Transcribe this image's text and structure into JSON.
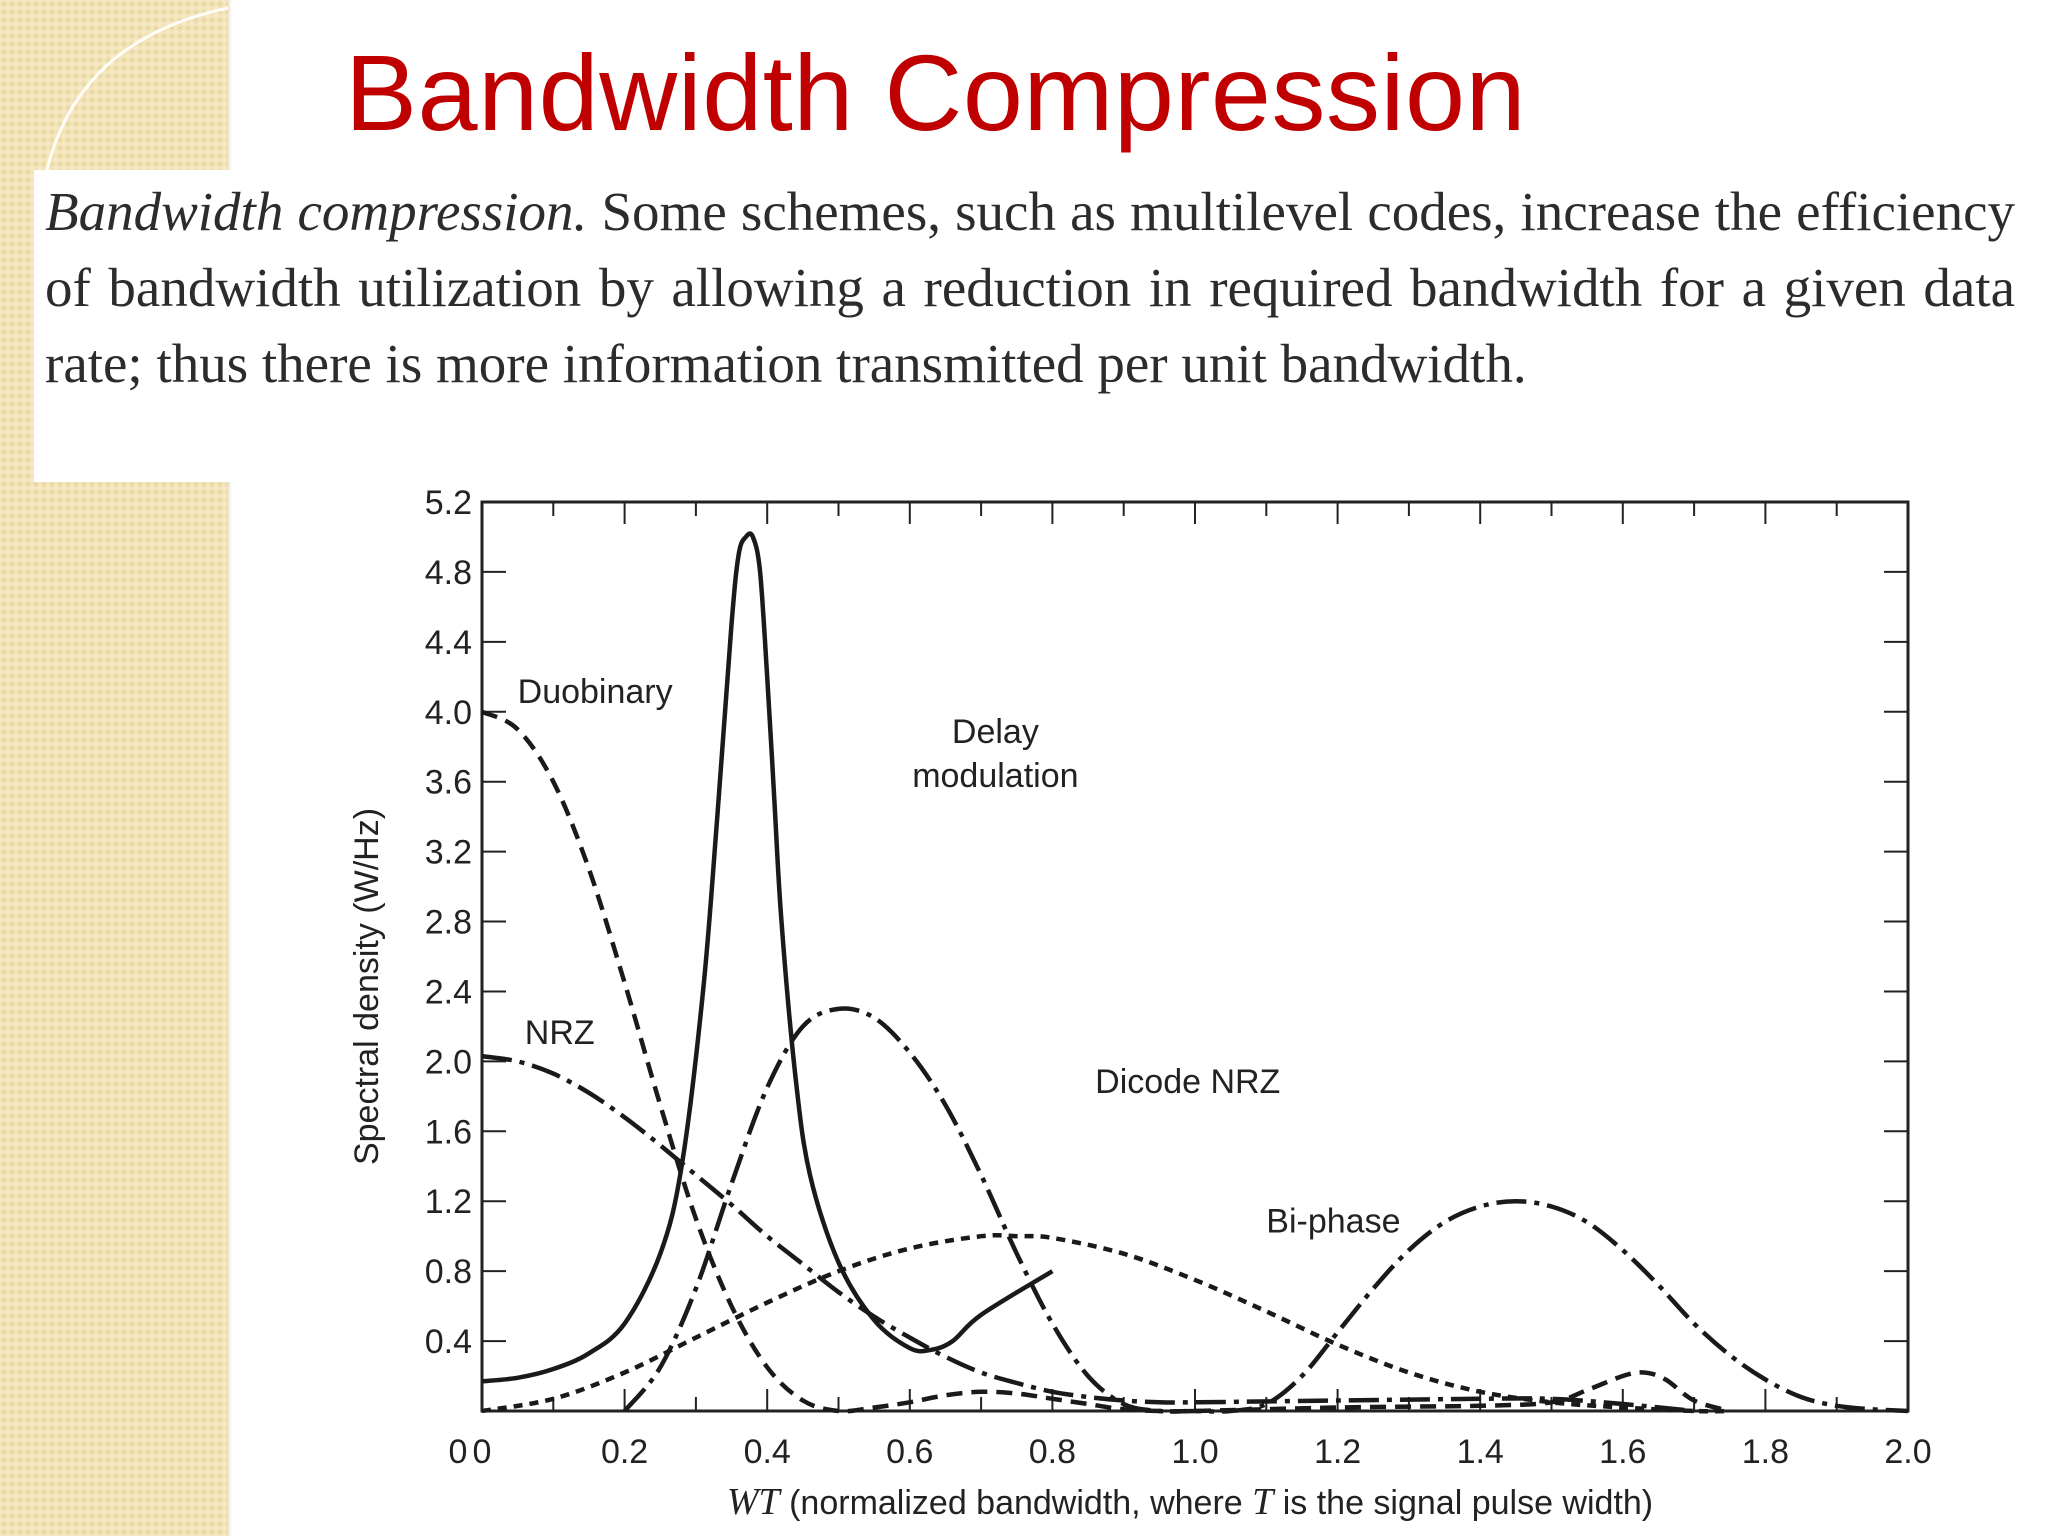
{
  "slide": {
    "title": "Bandwidth Compression",
    "paragraph_lead": "Bandwidth compression.",
    "paragraph_rest": "Some schemes, such as multilevel codes, increase the efficiency of bandwidth utilization by allowing a reduction in required bandwidth for a given data rate; thus there is more information transmitted per unit bandwidth.",
    "title_color": "#c00000"
  },
  "chart_data": {
    "type": "line",
    "title": "",
    "xlabel_parts": [
      "WT",
      " (normalized bandwidth, where ",
      "T",
      " is the signal pulse width)"
    ],
    "ylabel": "Spectral density (W/Hz)",
    "xlim": [
      0,
      2.0
    ],
    "ylim": [
      0,
      5.2
    ],
    "x_ticks": [
      0,
      0.2,
      0.4,
      0.6,
      0.8,
      1.0,
      1.2,
      1.4,
      1.6,
      1.8,
      2.0
    ],
    "x_tick_labels": [
      "0",
      "0.2",
      "0.4",
      "0.6",
      "0.8",
      "1.0",
      "1.2",
      "1.4",
      "1.6",
      "1.8",
      "2.0"
    ],
    "y_ticks": [
      0.4,
      0.8,
      1.2,
      1.6,
      2.0,
      2.4,
      2.8,
      3.2,
      3.6,
      4.0,
      4.4,
      4.8,
      5.2
    ],
    "y_tick_labels": [
      "0.4",
      "0.8",
      "1.2",
      "1.6",
      "2.0",
      "2.4",
      "2.8",
      "3.2",
      "3.6",
      "4.0",
      "4.4",
      "4.8",
      "5.2"
    ],
    "grid": false,
    "series": [
      {
        "name": "NRZ",
        "style": "long-dash-dot",
        "x": [
          0,
          0.05,
          0.1,
          0.15,
          0.2,
          0.25,
          0.3,
          0.35,
          0.4,
          0.45,
          0.5,
          0.55,
          0.6,
          0.65,
          0.7,
          0.75,
          0.8,
          0.85,
          0.9,
          0.95,
          1.0,
          1.2,
          1.4,
          1.5,
          1.6,
          1.7
        ],
        "y": [
          2.03,
          2.0,
          1.93,
          1.82,
          1.68,
          1.52,
          1.35,
          1.18,
          1.0,
          0.84,
          0.68,
          0.54,
          0.42,
          0.31,
          0.22,
          0.16,
          0.11,
          0.08,
          0.06,
          0.05,
          0.05,
          0.06,
          0.07,
          0.07,
          0.04,
          0.0
        ]
      },
      {
        "name": "Duobinary",
        "style": "dash",
        "x": [
          0,
          0.05,
          0.1,
          0.15,
          0.2,
          0.25,
          0.3,
          0.35,
          0.4,
          0.45,
          0.5,
          0.55,
          0.6,
          0.65,
          0.7,
          0.75,
          0.8,
          0.85,
          0.9,
          0.95,
          1.0,
          1.2,
          1.4,
          1.5,
          1.55,
          1.6,
          1.63,
          1.66,
          1.7,
          1.75
        ],
        "y": [
          4.0,
          3.9,
          3.6,
          3.1,
          2.45,
          1.75,
          1.1,
          0.6,
          0.25,
          0.06,
          0.0,
          0.02,
          0.05,
          0.09,
          0.11,
          0.1,
          0.07,
          0.04,
          0.01,
          0.0,
          0.0,
          0.02,
          0.03,
          0.05,
          0.12,
          0.2,
          0.22,
          0.18,
          0.06,
          0.0
        ]
      },
      {
        "name": "Delay modulation",
        "style": "solid",
        "x": [
          0,
          0.05,
          0.1,
          0.15,
          0.2,
          0.25,
          0.28,
          0.31,
          0.33,
          0.35,
          0.36,
          0.37,
          0.38,
          0.39,
          0.4,
          0.41,
          0.42,
          0.44,
          0.46,
          0.5,
          0.55,
          0.6,
          0.63,
          0.66,
          0.7,
          0.8
        ],
        "y": [
          0.17,
          0.19,
          0.24,
          0.33,
          0.5,
          0.9,
          1.4,
          2.4,
          3.4,
          4.5,
          4.9,
          5.0,
          5.0,
          4.8,
          4.2,
          3.5,
          2.8,
          1.9,
          1.35,
          0.85,
          0.52,
          0.36,
          0.35,
          0.4,
          0.55,
          0.8
        ]
      },
      {
        "name": "Dicode NRZ",
        "style": "long-dash-dot",
        "x": [
          0.2,
          0.25,
          0.3,
          0.35,
          0.4,
          0.45,
          0.5,
          0.55,
          0.6,
          0.65,
          0.7,
          0.75,
          0.8,
          0.85,
          0.9,
          0.95,
          1.0,
          1.05,
          1.1,
          1.15,
          1.2,
          1.25,
          1.3,
          1.35,
          1.4,
          1.45,
          1.5,
          1.55,
          1.6,
          1.65,
          1.7,
          1.75,
          1.8,
          1.85,
          1.9,
          1.95,
          2.0
        ],
        "y": [
          0.0,
          0.25,
          0.7,
          1.3,
          1.85,
          2.2,
          2.3,
          2.25,
          2.05,
          1.75,
          1.35,
          0.9,
          0.5,
          0.2,
          0.04,
          0.0,
          0.0,
          0.0,
          0.04,
          0.2,
          0.45,
          0.7,
          0.92,
          1.08,
          1.17,
          1.2,
          1.17,
          1.08,
          0.92,
          0.72,
          0.5,
          0.32,
          0.18,
          0.08,
          0.03,
          0.01,
          0.0
        ]
      },
      {
        "name": "Bi-phase",
        "style": "short-dash",
        "x": [
          0,
          0.1,
          0.2,
          0.3,
          0.4,
          0.5,
          0.6,
          0.7,
          0.75,
          0.8,
          0.9,
          1.0,
          1.1,
          1.2,
          1.3,
          1.4,
          1.5,
          1.6,
          1.7,
          1.75
        ],
        "y": [
          0.0,
          0.07,
          0.22,
          0.42,
          0.62,
          0.8,
          0.93,
          1.0,
          1.0,
          0.99,
          0.9,
          0.75,
          0.57,
          0.38,
          0.22,
          0.11,
          0.05,
          0.02,
          0.0,
          0.0
        ]
      }
    ],
    "annotations": [
      {
        "text": "Duobinary",
        "x": 0.05,
        "y": 4.05
      },
      {
        "text": "Delay",
        "x": 0.605,
        "y": 3.82
      },
      {
        "text": "modulation",
        "x": 0.605,
        "y": 3.57
      },
      {
        "text": "NRZ",
        "x": 0.06,
        "y": 2.1
      },
      {
        "text": "Dicode NRZ",
        "x": 0.86,
        "y": 1.82
      },
      {
        "text": "Bi-phase",
        "x": 1.1,
        "y": 1.02
      }
    ]
  }
}
